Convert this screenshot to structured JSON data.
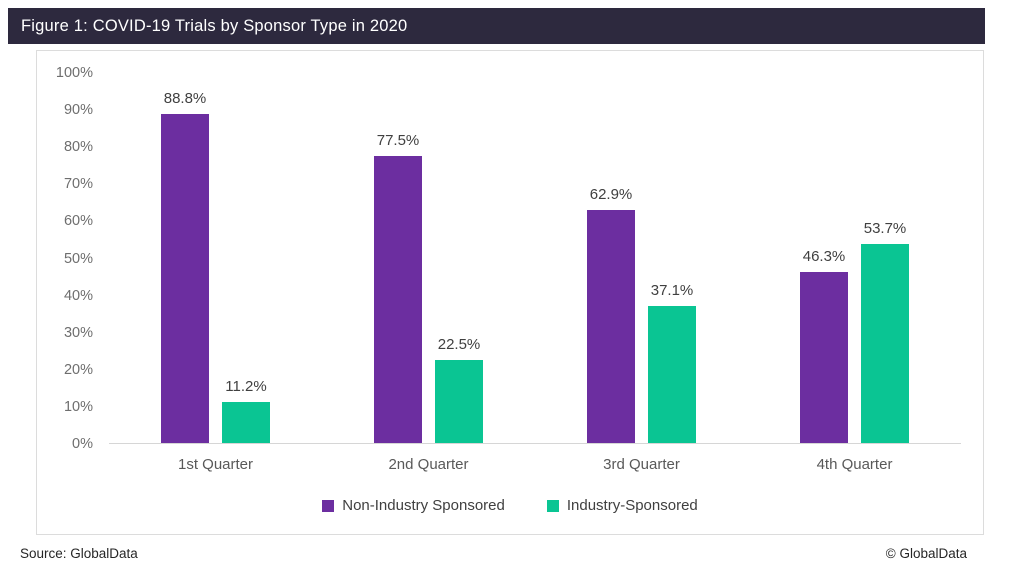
{
  "title": "Figure 1: COVID-19 Trials by Sponsor Type in 2020",
  "footer": {
    "source": "Source: GlobalData",
    "copyright": "© GlobalData"
  },
  "colors": {
    "title_bar": "#2D293E",
    "non_industry": "#6C2EA0",
    "industry": "#0AC593",
    "axis_line": "#D6D6D6",
    "panel_border": "#DCDCDC"
  },
  "chart_data": {
    "type": "bar",
    "title": "Figure 1: COVID-19 Trials by Sponsor Type in 2020",
    "categories": [
      "1st Quarter",
      "2nd Quarter",
      "3rd Quarter",
      "4th Quarter"
    ],
    "series": [
      {
        "name": "Non-Industry Sponsored",
        "color": "#6C2EA0",
        "values": [
          88.8,
          77.5,
          62.9,
          46.3
        ],
        "labels": [
          "88.8%",
          "77.5%",
          "62.9%",
          "46.3%"
        ]
      },
      {
        "name": "Industry-Sponsored",
        "color": "#0AC593",
        "values": [
          11.2,
          22.5,
          37.1,
          53.7
        ],
        "labels": [
          "11.2%",
          "22.5%",
          "37.1%",
          "53.7%"
        ]
      }
    ],
    "xlabel": "",
    "ylabel": "",
    "y_axis": {
      "min": 0,
      "max": 100,
      "step": 10,
      "tick_labels": [
        "0%",
        "10%",
        "20%",
        "30%",
        "40%",
        "50%",
        "60%",
        "70%",
        "80%",
        "90%",
        "100%"
      ]
    },
    "grid": false,
    "legend_position": "bottom"
  }
}
